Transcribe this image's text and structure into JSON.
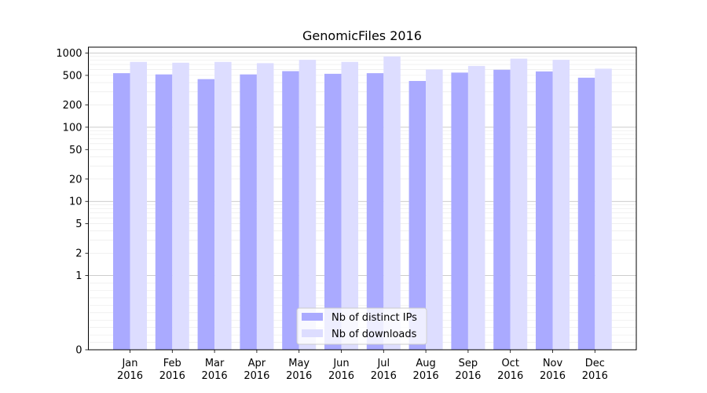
{
  "chart_data": {
    "type": "bar",
    "title": "GenomicFiles 2016",
    "xlabel": "",
    "ylabel": "",
    "yscale": "symlog",
    "ylim": [
      0,
      1200
    ],
    "categories": [
      "Jan\n2016",
      "Feb\n2016",
      "Mar\n2016",
      "Apr\n2016",
      "May\n2016",
      "Jun\n2016",
      "Jul\n2016",
      "Aug\n2016",
      "Sep\n2016",
      "Oct\n2016",
      "Nov\n2016",
      "Dec\n2016"
    ],
    "series": [
      {
        "name": "Nb of distinct IPs",
        "color": "#aaaaff",
        "values": [
          535,
          515,
          445,
          515,
          570,
          525,
          535,
          420,
          545,
          595,
          565,
          465
        ]
      },
      {
        "name": "Nb of downloads",
        "color": "#ddddff",
        "values": [
          760,
          740,
          760,
          730,
          810,
          760,
          900,
          600,
          670,
          840,
          810,
          615
        ]
      }
    ],
    "yticks": [
      0,
      1,
      2,
      5,
      10,
      20,
      50,
      100,
      200,
      500,
      1000
    ],
    "ytick_labels": [
      "0",
      "1",
      "2",
      "5",
      "10",
      "20",
      "50",
      "100",
      "200",
      "500",
      "1000"
    ],
    "grid": true,
    "legend_position": "bottom-center"
  }
}
